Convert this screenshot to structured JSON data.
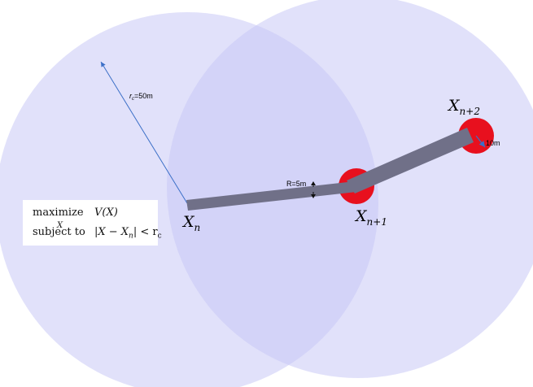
{
  "radius_label": "r_c=50m",
  "radius_label_parts": {
    "symbol": "r",
    "sub": "c",
    "value": "=50m"
  },
  "robot_radius_label": "R=5m",
  "target_size_label": "10m",
  "nodes": {
    "xn": {
      "base": "X",
      "sub": "n"
    },
    "xn1": {
      "base": "X",
      "sub": "n+1"
    },
    "xn2": {
      "base": "X",
      "sub": "n+2"
    }
  },
  "optimization": {
    "maximize_label": "maximize",
    "maximize_var": "X",
    "objective": "V(X)",
    "subject_label": "subject to",
    "constraint": "|X − X_n| < r_c",
    "constraint_parts": {
      "left": "|X − X",
      "sub": "n",
      "right": "| < r",
      "sub2": "c"
    }
  },
  "colors": {
    "circle_fill": "#c8c8f5",
    "path_color": "#707088",
    "target_color": "#e8101e",
    "arrow_color": "#3b6fc7"
  }
}
